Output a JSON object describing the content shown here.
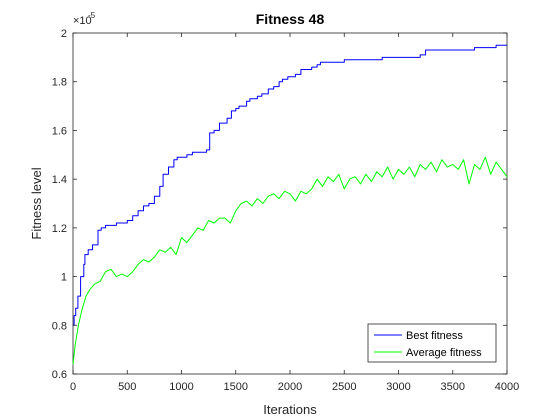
{
  "chart_data": {
    "type": "line",
    "title": "Fitness 48",
    "xlabel": "Iterations",
    "ylabel": "Fitness level",
    "y_exponent_label": "×10",
    "y_exponent_power": "-5",
    "y_scale_factor": 1e-05,
    "xlim": [
      0,
      4000
    ],
    "ylim": [
      0.6,
      2
    ],
    "xticks": [
      0,
      500,
      1000,
      1500,
      2000,
      2500,
      3000,
      3500,
      4000
    ],
    "yticks": [
      0.6,
      0.8,
      1,
      1.2,
      1.4,
      1.6,
      1.8,
      2
    ],
    "xtick_labels": [
      "0",
      "500",
      "1000",
      "1500",
      "2000",
      "2500",
      "3000",
      "3500",
      "4000"
    ],
    "ytick_labels": [
      "0.6",
      "0.8",
      "1",
      "1.2",
      "1.4",
      "1.6",
      "1.8",
      "2"
    ],
    "grid": false,
    "legend_position": "bottom-right",
    "series": [
      {
        "name": "Best fitness",
        "color": "#0000ff",
        "style": "step",
        "x": [
          0,
          10,
          25,
          45,
          70,
          100,
          110,
          140,
          180,
          230,
          260,
          300,
          400,
          500,
          550,
          600,
          650,
          700,
          750,
          800,
          830,
          880,
          930,
          960,
          1000,
          1050,
          1100,
          1150,
          1190,
          1230,
          1260,
          1300,
          1350,
          1420,
          1460,
          1500,
          1530,
          1600,
          1630,
          1700,
          1740,
          1800,
          1850,
          1900,
          1930,
          1980,
          2050,
          2100,
          2200,
          2250,
          2280,
          2500,
          2700,
          2850,
          2900,
          3000,
          3200,
          3250,
          3400,
          3700,
          3800,
          3900,
          4000
        ],
        "y": [
          0.8,
          0.84,
          0.87,
          0.92,
          1.0,
          1.05,
          1.09,
          1.11,
          1.13,
          1.19,
          1.2,
          1.21,
          1.22,
          1.23,
          1.25,
          1.27,
          1.29,
          1.3,
          1.33,
          1.37,
          1.42,
          1.45,
          1.48,
          1.49,
          1.49,
          1.5,
          1.51,
          1.51,
          1.51,
          1.52,
          1.59,
          1.6,
          1.63,
          1.65,
          1.68,
          1.69,
          1.7,
          1.72,
          1.73,
          1.74,
          1.75,
          1.77,
          1.78,
          1.8,
          1.81,
          1.82,
          1.83,
          1.85,
          1.86,
          1.87,
          1.88,
          1.89,
          1.89,
          1.9,
          1.9,
          1.9,
          1.91,
          1.93,
          1.93,
          1.94,
          1.94,
          1.95,
          1.95
        ]
      },
      {
        "name": "Average fitness",
        "color": "#00ff00",
        "style": "line",
        "x": [
          0,
          20,
          50,
          80,
          120,
          160,
          200,
          250,
          300,
          350,
          400,
          450,
          500,
          550,
          600,
          650,
          700,
          750,
          800,
          850,
          900,
          950,
          1000,
          1050,
          1100,
          1150,
          1200,
          1250,
          1300,
          1350,
          1400,
          1450,
          1500,
          1550,
          1600,
          1650,
          1700,
          1750,
          1800,
          1850,
          1900,
          1950,
          2000,
          2050,
          2100,
          2150,
          2200,
          2250,
          2300,
          2350,
          2400,
          2450,
          2500,
          2550,
          2600,
          2650,
          2700,
          2750,
          2800,
          2850,
          2900,
          2950,
          3000,
          3050,
          3100,
          3150,
          3200,
          3250,
          3300,
          3350,
          3400,
          3450,
          3500,
          3550,
          3600,
          3650,
          3700,
          3750,
          3800,
          3850,
          3900,
          3950,
          4000
        ],
        "y": [
          0.64,
          0.72,
          0.8,
          0.86,
          0.92,
          0.95,
          0.97,
          0.98,
          1.02,
          1.03,
          1.0,
          1.01,
          1.0,
          1.02,
          1.05,
          1.07,
          1.06,
          1.08,
          1.11,
          1.1,
          1.12,
          1.09,
          1.16,
          1.14,
          1.17,
          1.2,
          1.19,
          1.23,
          1.22,
          1.24,
          1.24,
          1.22,
          1.27,
          1.3,
          1.31,
          1.29,
          1.32,
          1.3,
          1.33,
          1.34,
          1.32,
          1.35,
          1.34,
          1.31,
          1.35,
          1.34,
          1.36,
          1.4,
          1.37,
          1.41,
          1.39,
          1.42,
          1.36,
          1.4,
          1.41,
          1.38,
          1.42,
          1.39,
          1.43,
          1.41,
          1.45,
          1.4,
          1.44,
          1.42,
          1.45,
          1.41,
          1.46,
          1.44,
          1.47,
          1.43,
          1.48,
          1.45,
          1.46,
          1.44,
          1.48,
          1.38,
          1.46,
          1.44,
          1.49,
          1.42,
          1.47,
          1.44,
          1.41
        ]
      }
    ]
  }
}
